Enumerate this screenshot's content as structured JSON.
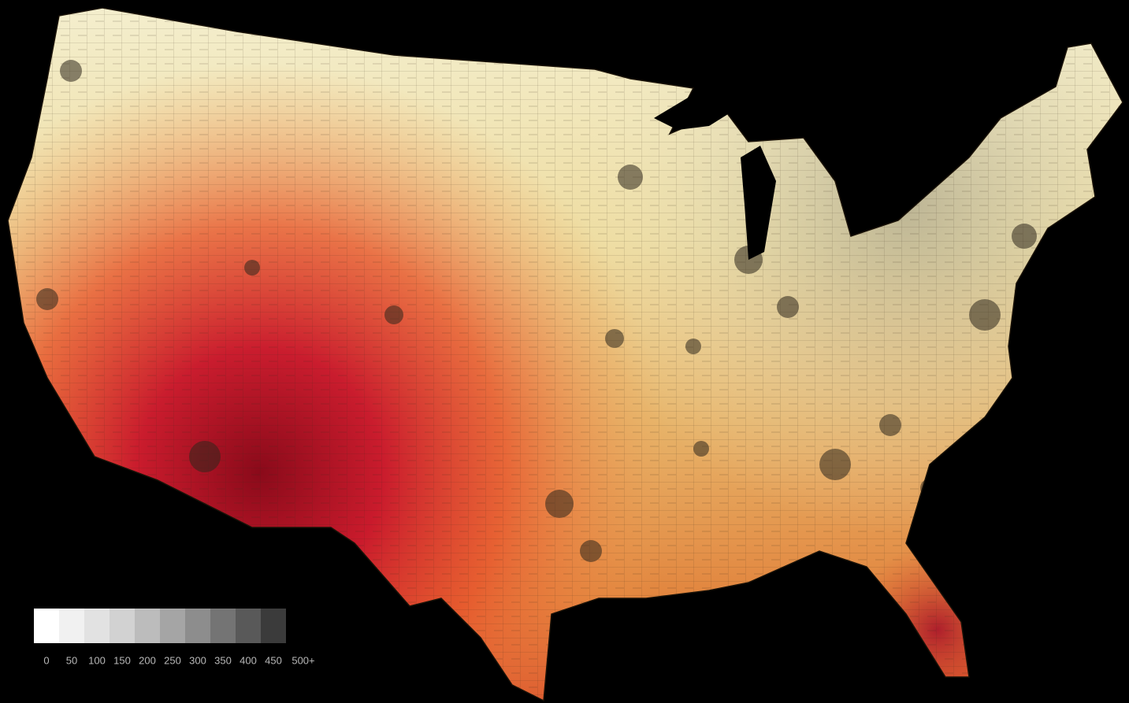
{
  "legend": {
    "ticks": [
      0,
      50,
      100,
      150,
      200,
      250,
      300,
      350,
      400,
      450,
      {
        "value": 500,
        "label": "500+"
      }
    ],
    "colors": [
      "#ffffff",
      "#f1f1f1",
      "#e2e2e2",
      "#d2d2d2",
      "#bcbcbc",
      "#a5a5a5",
      "#8d8d8d",
      "#747474",
      "#595959",
      "#3b3b3b"
    ]
  }
}
